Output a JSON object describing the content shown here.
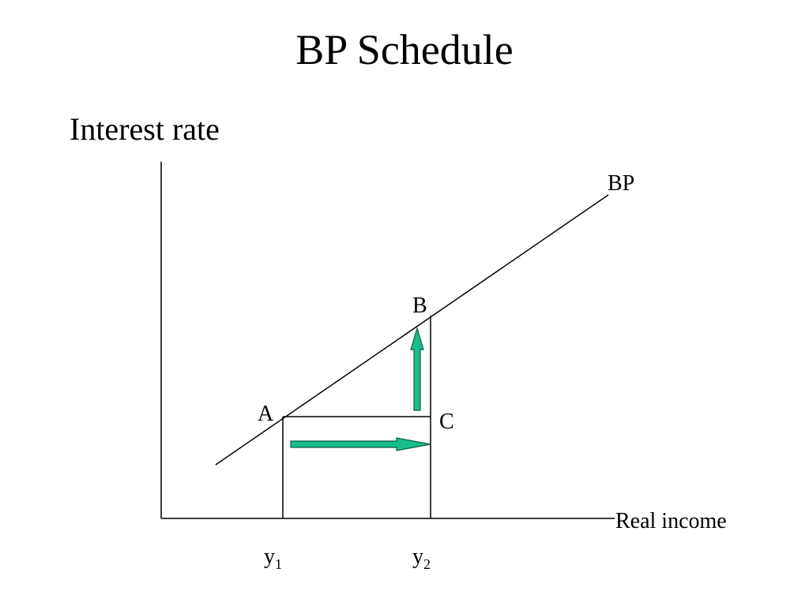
{
  "slide": {
    "title": "BP Schedule"
  },
  "diagram": {
    "y_axis_label": "Interest rate",
    "x_axis_label": "Real income",
    "curve_label": "BP",
    "points": {
      "a": "A",
      "b": "B",
      "c": "C"
    },
    "x_ticks": {
      "y1": {
        "base": "y",
        "sub": "1"
      },
      "y2": {
        "base": "y",
        "sub": "2"
      }
    },
    "colors": {
      "line": "#000000",
      "arrow_fill": "#1abc8c",
      "arrow_stroke": "#0b5e46"
    }
  }
}
